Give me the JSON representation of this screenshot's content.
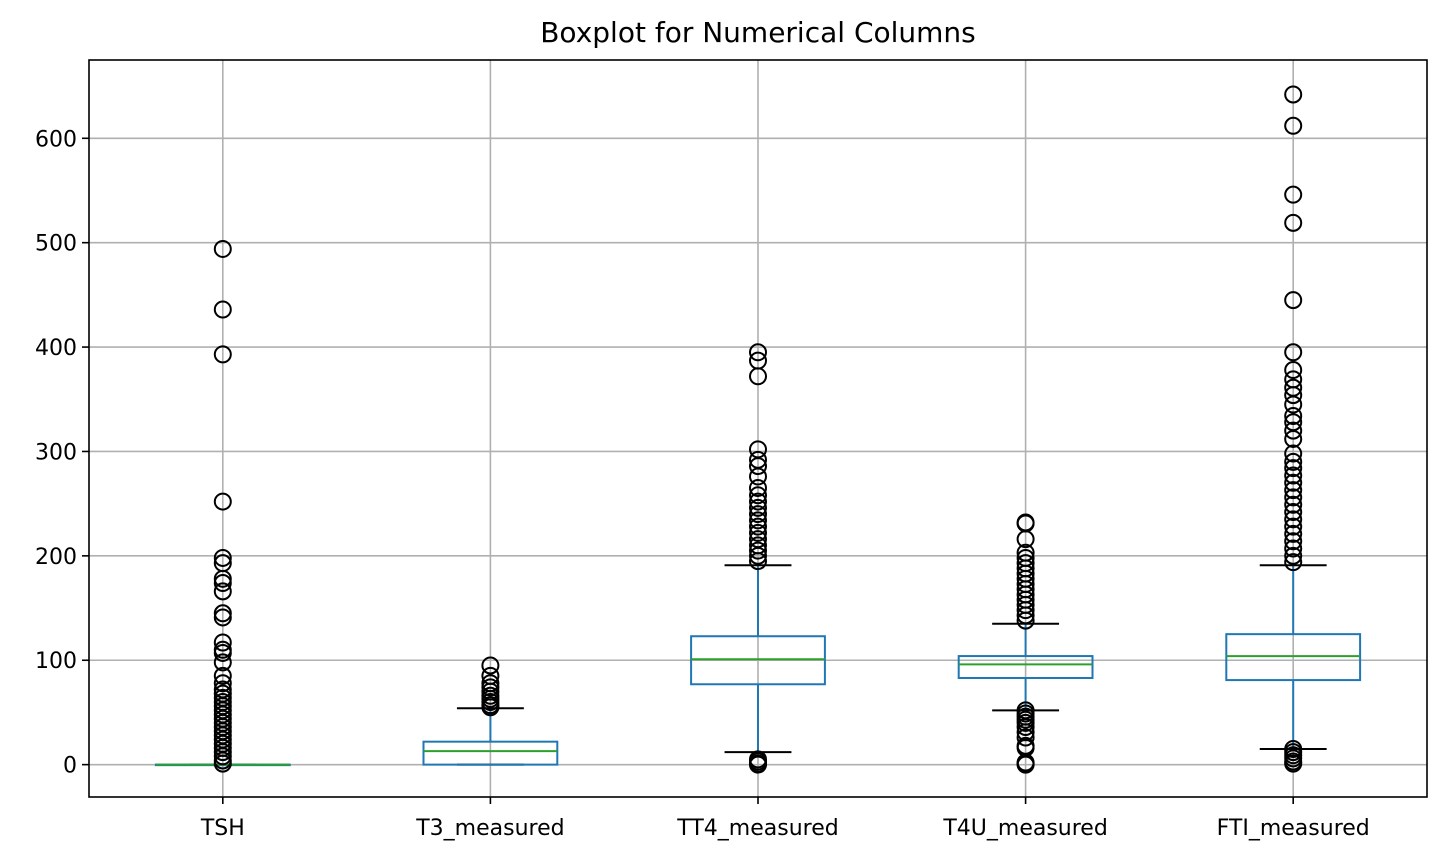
{
  "chart_data": {
    "type": "boxplot",
    "title": "Boxplot for Numerical Columns",
    "xlabel": "",
    "ylabel": "",
    "grid": true,
    "ylim": [
      -31,
      675
    ],
    "yticks": [
      0,
      100,
      200,
      300,
      400,
      500,
      600
    ],
    "categories": [
      "TSH",
      "T3_measured",
      "TT4_measured",
      "T4U_measured",
      "FTI_measured"
    ],
    "colors": {
      "box": "#1f77b4",
      "median": "#2ca02c",
      "whisker_cap": "#000000",
      "grid": "#b0b0b0",
      "outlier_edge": "#000000"
    },
    "boxes": [
      {
        "name": "TSH",
        "whislo": 0,
        "q1": 0,
        "med": 0,
        "q3": 0,
        "whishi": 0,
        "fliers": [
          494,
          436,
          393,
          252,
          198,
          193,
          178,
          174,
          166,
          145,
          141,
          117,
          110,
          107,
          98,
          85,
          78,
          72,
          68,
          64,
          60,
          56,
          52,
          48,
          44,
          40,
          36,
          32,
          28,
          24,
          20,
          16,
          12,
          8,
          4,
          1
        ]
      },
      {
        "name": "T3_measured",
        "whislo": 0,
        "q1": 0,
        "med": 13,
        "q3": 22,
        "whishi": 54,
        "fliers": [
          95,
          85,
          78,
          74,
          70,
          66,
          63,
          60,
          57,
          55
        ]
      },
      {
        "name": "TT4_measured",
        "whislo": 12,
        "q1": 77,
        "med": 101,
        "q3": 123,
        "whishi": 191,
        "fliers": [
          395,
          387,
          372,
          302,
          292,
          286,
          276,
          265,
          258,
          252,
          246,
          240,
          234,
          228,
          222,
          216,
          210,
          205,
          200,
          195,
          5,
          3,
          1,
          0
        ]
      },
      {
        "name": "T4U_measured",
        "whislo": 52,
        "q1": 83,
        "med": 96,
        "q3": 104,
        "whishi": 135,
        "fliers": [
          232,
          231,
          216,
          203,
          198,
          193,
          188,
          183,
          178,
          173,
          168,
          163,
          158,
          153,
          148,
          143,
          138,
          52,
          49,
          46,
          43,
          40,
          36,
          31,
          26,
          18,
          16,
          2,
          1,
          0
        ]
      },
      {
        "name": "FTI_measured",
        "whislo": 15,
        "q1": 81,
        "med": 104,
        "q3": 125,
        "whishi": 191,
        "fliers": [
          642,
          612,
          546,
          519,
          445,
          395,
          378,
          369,
          361,
          354,
          345,
          334,
          328,
          320,
          312,
          298,
          290,
          284,
          277,
          270,
          263,
          256,
          249,
          242,
          235,
          228,
          221,
          214,
          207,
          200,
          194,
          15,
          12,
          9,
          6,
          3,
          1
        ]
      }
    ]
  }
}
